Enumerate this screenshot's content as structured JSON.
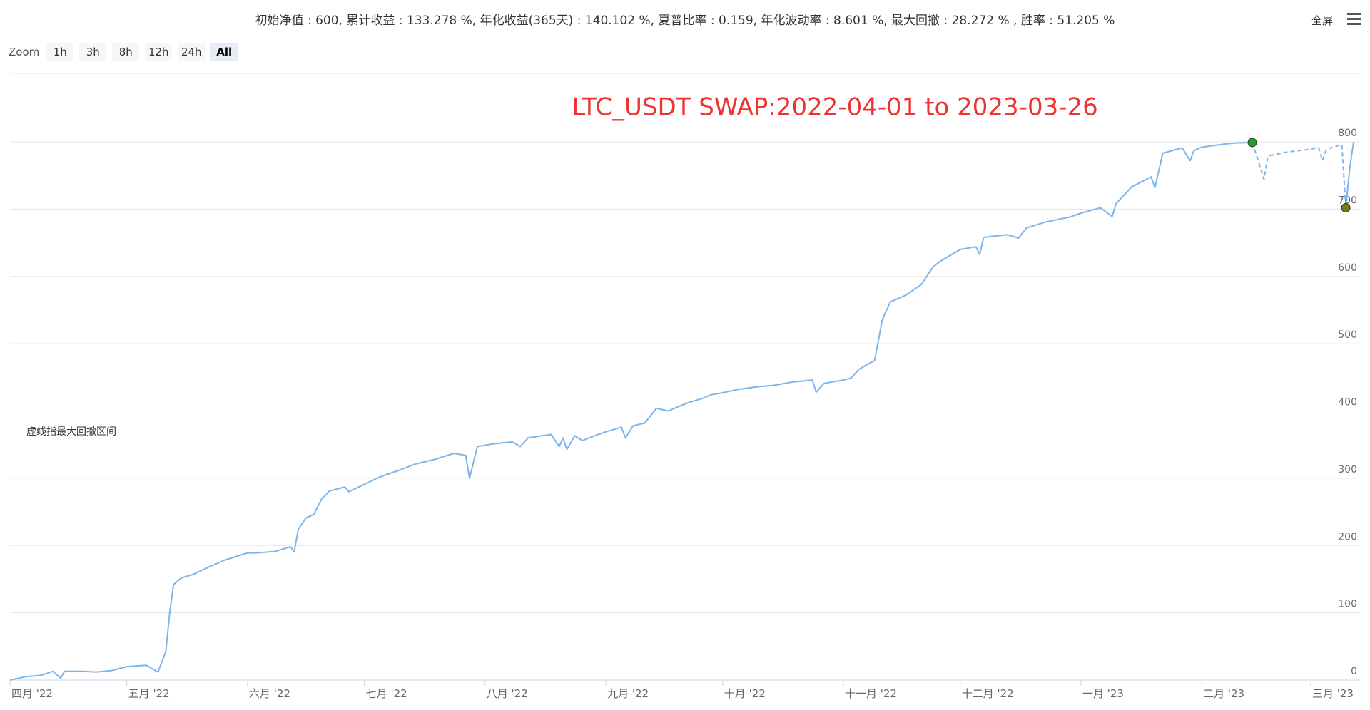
{
  "header": {
    "stats": "初始净值 : 600, 累计收益 : 133.278 %, 年化收益(365天) : 140.102 %, 夏普比率 : 0.159, 年化波动率 : 8.601 %, 最大回撤 : 28.272 % , 胜率 : 51.205 %",
    "fullscreen": "全屏"
  },
  "zoom": {
    "label": "Zoom",
    "buttons": [
      "1h",
      "3h",
      "8h",
      "12h",
      "24h",
      "All"
    ],
    "selected": 5
  },
  "chart_data": {
    "type": "line",
    "title": "LTC_USDT SWAP:2022-04-01 to 2023-03-26",
    "title_color": "#ee3333",
    "xlim": [
      "2022-04-01",
      "2023-03-12"
    ],
    "xticks": [
      {
        "value": "2022-04-01",
        "label": "四月 '22"
      },
      {
        "value": "2022-05-01",
        "label": "五月 '22"
      },
      {
        "value": "2022-06-01",
        "label": "六月 '22"
      },
      {
        "value": "2022-07-01",
        "label": "七月 '22"
      },
      {
        "value": "2022-08-01",
        "label": "八月 '22"
      },
      {
        "value": "2022-09-01",
        "label": "九月 '22"
      },
      {
        "value": "2022-10-01",
        "label": "十月 '22"
      },
      {
        "value": "2022-11-01",
        "label": "十一月 '22"
      },
      {
        "value": "2022-12-01",
        "label": "十二月 '22"
      },
      {
        "value": "2023-01-01",
        "label": "一月 '23"
      },
      {
        "value": "2023-02-01",
        "label": "二月 '23"
      },
      {
        "value": "2023-03-01",
        "label": "三月 '23"
      }
    ],
    "ylim": [
      0,
      800
    ],
    "yticks": [
      0,
      100,
      200,
      300,
      400,
      500,
      600,
      700,
      800
    ],
    "grid": true,
    "series": [
      {
        "color": "#7cb5ec",
        "dashed": false,
        "x": [
          "2022-04-01",
          "2022-04-05",
          "2022-04-09",
          "2022-04-12",
          "2022-04-14",
          "2022-04-15",
          "2022-04-20",
          "2022-04-23",
          "2022-04-27",
          "2022-05-01",
          "2022-05-06",
          "2022-05-09",
          "2022-05-11",
          "2022-05-12",
          "2022-05-13",
          "2022-05-15",
          "2022-05-18",
          "2022-05-22",
          "2022-05-26",
          "2022-06-01",
          "2022-06-03",
          "2022-06-08",
          "2022-06-12",
          "2022-06-13",
          "2022-06-14",
          "2022-06-16",
          "2022-06-18",
          "2022-06-20",
          "2022-06-22",
          "2022-06-26",
          "2022-06-27",
          "2022-07-01",
          "2022-07-05",
          "2022-07-10",
          "2022-07-14",
          "2022-07-19",
          "2022-07-24",
          "2022-07-27",
          "2022-07-28",
          "2022-07-30",
          "2022-08-03",
          "2022-08-08",
          "2022-08-10",
          "2022-08-12",
          "2022-08-18",
          "2022-08-20",
          "2022-08-21",
          "2022-08-22",
          "2022-08-24",
          "2022-08-26",
          "2022-08-30",
          "2022-09-01",
          "2022-09-05",
          "2022-09-06",
          "2022-09-08",
          "2022-09-11",
          "2022-09-14",
          "2022-09-17",
          "2022-09-22",
          "2022-09-26",
          "2022-09-28",
          "2022-10-01",
          "2022-10-05",
          "2022-10-10",
          "2022-10-14",
          "2022-10-19",
          "2022-10-24",
          "2022-10-25",
          "2022-10-27",
          "2022-11-01",
          "2022-11-03",
          "2022-11-05",
          "2022-11-09",
          "2022-11-11",
          "2022-11-13",
          "2022-11-17",
          "2022-11-21",
          "2022-11-24",
          "2022-11-26",
          "2022-12-01",
          "2022-12-05",
          "2022-12-06",
          "2022-12-07",
          "2022-12-13",
          "2022-12-16",
          "2022-12-18",
          "2022-12-23",
          "2022-12-29",
          "2023-01-01",
          "2023-01-06",
          "2023-01-09",
          "2023-01-10",
          "2023-01-14",
          "2023-01-19",
          "2023-01-20",
          "2023-01-22",
          "2023-01-27",
          "2023-01-29",
          "2023-01-30",
          "2023-02-01",
          "2023-02-06",
          "2023-02-09",
          "2023-02-14",
          "2023-03-09",
          "2023-03-10",
          "2023-03-11",
          "2023-03-12"
        ],
        "values": [
          0,
          5,
          7,
          13,
          3,
          13,
          13,
          12,
          14,
          20,
          22,
          12,
          42,
          100,
          142,
          152,
          157,
          168,
          178,
          189,
          189,
          191,
          198,
          191,
          224,
          241,
          246,
          269,
          281,
          287,
          280,
          291,
          302,
          312,
          321,
          328,
          337,
          334,
          300,
          347,
          351,
          354,
          347,
          360,
          365,
          347,
          360,
          343,
          363,
          356,
          365,
          369,
          376,
          360,
          378,
          382,
          404,
          400,
          412,
          419,
          424,
          427,
          432,
          436,
          438,
          443,
          446,
          428,
          441,
          446,
          449,
          462,
          475,
          536,
          562,
          572,
          588,
          614,
          623,
          640,
          644,
          633,
          658,
          662,
          657,
          672,
          681,
          688,
          694,
          702,
          689,
          708,
          733,
          748,
          732,
          783,
          791,
          772,
          787,
          792,
          796,
          798,
          799,
          null,
          702,
          760,
          800
        ]
      },
      {
        "color": "#7cb5ec",
        "dashed": true,
        "x": [
          "2023-02-14",
          "2023-02-16",
          "2023-02-17",
          "2023-02-18",
          "2023-02-23",
          "2023-03-01",
          "2023-03-03",
          "2023-03-04",
          "2023-03-05",
          "2023-03-09",
          "2023-03-10"
        ],
        "values": [
          799,
          763,
          744,
          779,
          785,
          789,
          792,
          772,
          789,
          796,
          702
        ]
      }
    ],
    "markers": [
      {
        "x": "2023-02-14",
        "value": 799,
        "color": "#22a022"
      },
      {
        "x": "2023-03-10",
        "value": 702,
        "color": "#7a7a10"
      }
    ],
    "annotations": [
      {
        "text": "虚线指最大回撤区间"
      }
    ]
  }
}
